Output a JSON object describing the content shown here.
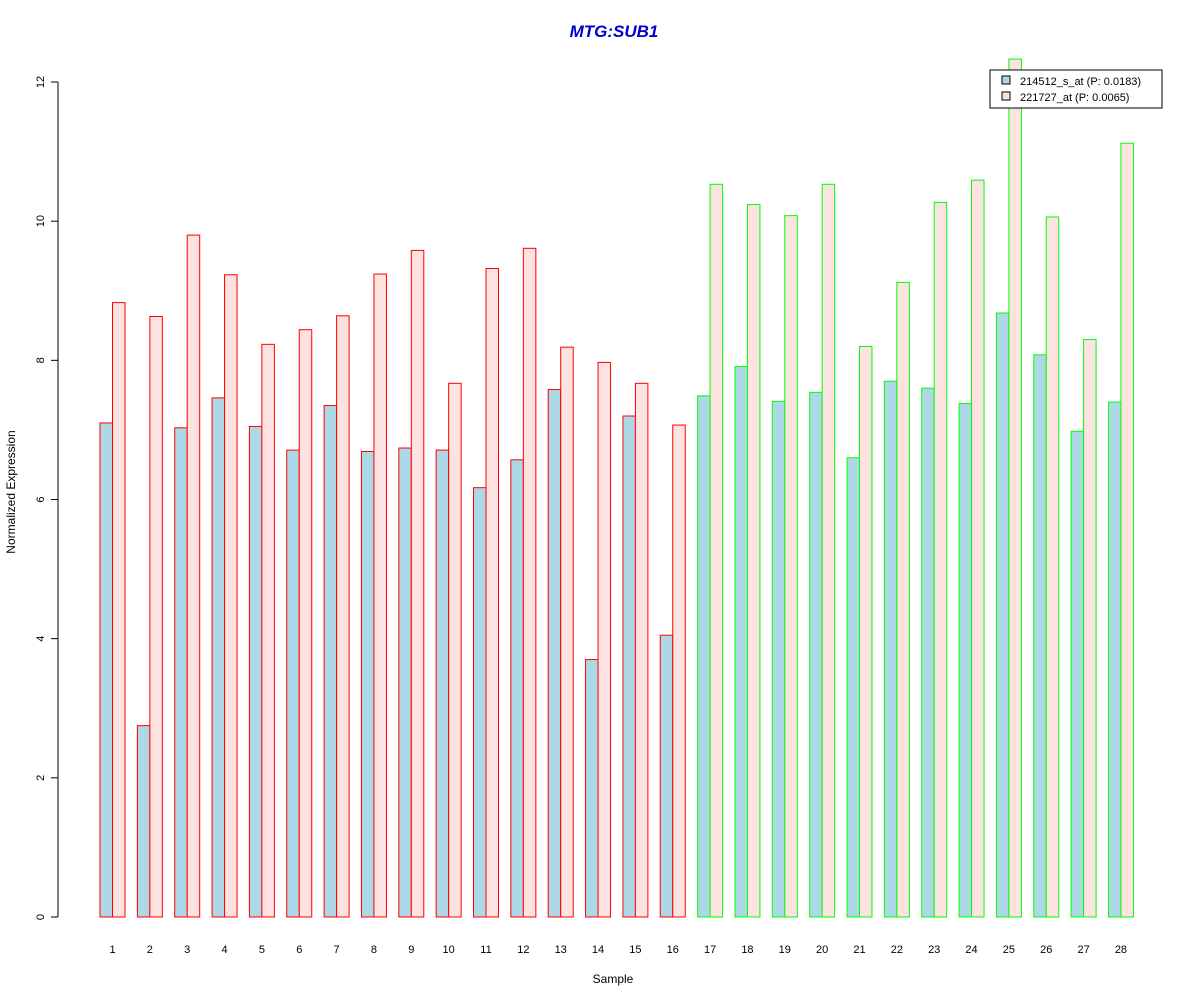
{
  "chart_data": {
    "type": "bar",
    "title": "MTG:SUB1",
    "xlabel": "Sample",
    "ylabel": "Normalized Expression",
    "ylim": [
      0,
      12
    ],
    "yticks": [
      "0",
      "2",
      "4",
      "6",
      "8",
      "10",
      "12"
    ],
    "categories": [
      "1",
      "2",
      "3",
      "4",
      "5",
      "6",
      "7",
      "8",
      "9",
      "10",
      "11",
      "12",
      "13",
      "14",
      "15",
      "16",
      "17",
      "18",
      "19",
      "20",
      "21",
      "22",
      "23",
      "24",
      "25",
      "26",
      "27",
      "28"
    ],
    "series": [
      {
        "name": "214512_s_at (P: 0.0183)",
        "fill": "#add8e6",
        "values": [
          7.1,
          2.75,
          7.03,
          7.46,
          7.05,
          6.71,
          7.35,
          6.69,
          6.74,
          6.71,
          6.17,
          6.57,
          7.58,
          3.7,
          7.2,
          4.05,
          7.49,
          7.91,
          7.41,
          7.54,
          6.6,
          7.7,
          7.6,
          7.38,
          8.68,
          8.08,
          6.98,
          7.4
        ]
      },
      {
        "name": "221727_at (P: 0.0065)",
        "fill": "#fde2e2",
        "values": [
          8.83,
          8.63,
          9.8,
          9.23,
          8.23,
          8.44,
          8.64,
          9.24,
          9.58,
          7.67,
          9.32,
          9.61,
          8.19,
          7.97,
          7.67,
          7.07,
          10.53,
          10.24,
          10.08,
          10.53,
          8.2,
          9.12,
          10.27,
          10.59,
          12.33,
          10.06,
          8.3,
          11.12
        ]
      }
    ],
    "group_outline_colors": {
      "samples_1_16": "#ff0000",
      "samples_17_28": "#00ff00"
    },
    "title_color": "#0000cd",
    "legend_position": "top-right",
    "grid": false
  }
}
